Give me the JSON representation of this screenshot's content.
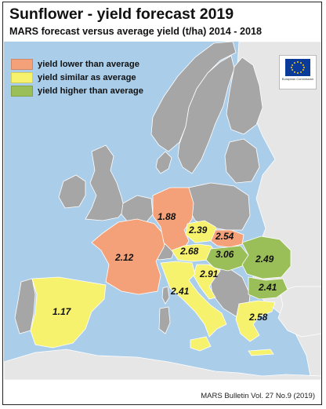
{
  "title": "Sunflower - yield forecast 2019",
  "subtitle": "MARS forecast versus average yield (t/ha) 2014 - 2018",
  "legend": [
    {
      "label": "yield lower than average",
      "color": "#f4a179"
    },
    {
      "label": "yield similar as average",
      "color": "#f7f26d"
    },
    {
      "label": "yield higher than average",
      "color": "#9bbf58"
    }
  ],
  "logo": {
    "icon": "eu-flag-icon",
    "text": "European Commission"
  },
  "colors": {
    "sea": "#aacdea",
    "land_other": "#a6a6a6",
    "non_eu": "#e6e6e6"
  },
  "countries": [
    {
      "name": "France",
      "value": "2.12",
      "status": "lower"
    },
    {
      "name": "Germany",
      "value": "1.88",
      "status": "lower"
    },
    {
      "name": "Spain",
      "value": "1.17",
      "status": "similar"
    },
    {
      "name": "Czechia",
      "value": "2.39",
      "status": "similar"
    },
    {
      "name": "Slovakia",
      "value": "2.54",
      "status": "lower"
    },
    {
      "name": "Austria",
      "value": "2.68",
      "status": "similar"
    },
    {
      "name": "Hungary",
      "value": "3.06",
      "status": "higher"
    },
    {
      "name": "Croatia",
      "value": "2.91",
      "status": "similar"
    },
    {
      "name": "Romania",
      "value": "2.49",
      "status": "higher"
    },
    {
      "name": "Bulgaria",
      "value": "2.41",
      "status": "higher"
    },
    {
      "name": "Italy",
      "value": "2.41",
      "status": "similar"
    },
    {
      "name": "Greece",
      "value": "2.58",
      "status": "similar"
    }
  ],
  "footer": "MARS Bulletin Vol. 27 No.9 (2019)"
}
